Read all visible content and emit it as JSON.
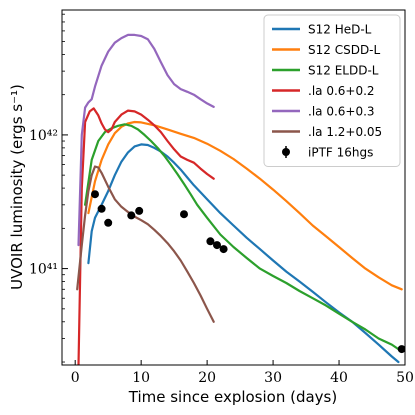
{
  "chart_data": {
    "type": "line",
    "xlabel": "Time since explosion (days)",
    "ylabel": "UVOIR luminosity (ergs s⁻¹)",
    "xlim": [
      -2,
      50
    ],
    "ylim": [
      1.9e+40,
      8.6e+42
    ],
    "yscale": "log",
    "grid": false,
    "legend_position": "top-right",
    "x_ticks": [
      0,
      10,
      20,
      30,
      40,
      50
    ],
    "y_ticks": [
      {
        "value": 1e+41,
        "label": "10⁴¹"
      },
      {
        "value": 1e+42,
        "label": "10⁴²"
      }
    ],
    "series": [
      {
        "name": "S12 HeD-L",
        "color": "#1f77b4",
        "points": [
          [
            2.0,
            1.1e+41
          ],
          [
            2.5,
            1.9e+41
          ],
          [
            3.0,
            2.4e+41
          ],
          [
            4.0,
            3e+41
          ],
          [
            5.0,
            3.8e+41
          ],
          [
            6.0,
            5e+41
          ],
          [
            7.0,
            6.3e+41
          ],
          [
            8.0,
            7.4e+41
          ],
          [
            9.0,
            8.2e+41
          ],
          [
            10.0,
            8.5e+41
          ],
          [
            11.0,
            8.4e+41
          ],
          [
            12.0,
            8e+41
          ],
          [
            13.0,
            7.5e+41
          ],
          [
            14.0,
            6.9e+41
          ],
          [
            15.0,
            6.2e+41
          ],
          [
            16.0,
            5.5e+41
          ],
          [
            17.0,
            4.8e+41
          ],
          [
            18.0,
            4.2e+41
          ],
          [
            20.0,
            3.3e+41
          ],
          [
            22.0,
            2.6e+41
          ],
          [
            24.0,
            2.1e+41
          ],
          [
            26.0,
            1.7e+41
          ],
          [
            28.0,
            1.4e+41
          ],
          [
            30.0,
            1.15e+41
          ],
          [
            32.0,
            9.5e+40
          ],
          [
            34.0,
            8e+40
          ],
          [
            36.0,
            6.7e+40
          ],
          [
            38.0,
            5.6e+40
          ],
          [
            40.0,
            4.7e+40
          ],
          [
            42.0,
            4e+40
          ],
          [
            44.0,
            3.3e+40
          ],
          [
            46.0,
            2.7e+40
          ],
          [
            48.0,
            2.2e+40
          ],
          [
            49.0,
            2e+40
          ]
        ]
      },
      {
        "name": "S12 CSDD-L",
        "color": "#ff7f0e",
        "points": [
          [
            2.0,
            2.6e+41
          ],
          [
            3.0,
            4.5e+41
          ],
          [
            4.0,
            6.5e+41
          ],
          [
            5.0,
            8.5e+41
          ],
          [
            6.0,
            1.03e+42
          ],
          [
            7.0,
            1.15e+42
          ],
          [
            8.0,
            1.22e+42
          ],
          [
            9.0,
            1.25e+42
          ],
          [
            10.0,
            1.24e+42
          ],
          [
            12.0,
            1.18e+42
          ],
          [
            14.0,
            1.1e+42
          ],
          [
            16.0,
            1.02e+42
          ],
          [
            18.0,
            9.5e+41
          ],
          [
            20.0,
            8.6e+41
          ],
          [
            22.0,
            7.6e+41
          ],
          [
            24.0,
            6.6e+41
          ],
          [
            26.0,
            5.6e+41
          ],
          [
            28.0,
            4.7e+41
          ],
          [
            30.0,
            3.9e+41
          ],
          [
            32.0,
            3.2e+41
          ],
          [
            34.0,
            2.6e+41
          ],
          [
            36.0,
            2.1e+41
          ],
          [
            38.0,
            1.75e+41
          ],
          [
            40.0,
            1.45e+41
          ],
          [
            42.0,
            1.2e+41
          ],
          [
            44.0,
            1e+41
          ],
          [
            46.0,
            8.6e+40
          ],
          [
            48.0,
            7.5e+40
          ],
          [
            49.5,
            7e+40
          ]
        ]
      },
      {
        "name": "S12 ELDD-L",
        "color": "#2ca02c",
        "points": [
          [
            1.5,
            3e+41
          ],
          [
            2.5,
            6.5e+41
          ],
          [
            3.5,
            9e+41
          ],
          [
            4.5,
            1.05e+42
          ],
          [
            5.5,
            1.12e+42
          ],
          [
            6.5,
            1.17e+42
          ],
          [
            7.5,
            1.2e+42
          ],
          [
            8.5,
            1.17e+42
          ],
          [
            9.5,
            1.1e+42
          ],
          [
            10.5,
            1e+42
          ],
          [
            11.5,
            9e+41
          ],
          [
            12.5,
            8e+41
          ],
          [
            13.5,
            7e+41
          ],
          [
            14.5,
            6e+41
          ],
          [
            15.5,
            5.1e+41
          ],
          [
            16.5,
            4.3e+41
          ],
          [
            17.5,
            3.6e+41
          ],
          [
            18.5,
            3e+41
          ],
          [
            20.0,
            2.4e+41
          ],
          [
            22.0,
            1.8e+41
          ],
          [
            24.0,
            1.45e+41
          ],
          [
            26.0,
            1.2e+41
          ],
          [
            28.0,
            1e+41
          ],
          [
            30.0,
            8.8e+40
          ],
          [
            32.0,
            7.8e+40
          ],
          [
            34.0,
            6.8e+40
          ],
          [
            36.0,
            6e+40
          ],
          [
            38.0,
            5.3e+40
          ],
          [
            40.0,
            4.6e+40
          ],
          [
            42.0,
            4e+40
          ],
          [
            44.0,
            3.5e+40
          ],
          [
            46.0,
            3e+40
          ],
          [
            48.0,
            2.7e+40
          ],
          [
            49.5,
            2.4e+40
          ]
        ]
      },
      {
        "name": ".la 0.6+0.2",
        "color": "#d62728",
        "points": [
          [
            0.5,
            1.9e+40
          ],
          [
            1.0,
            4e+41
          ],
          [
            1.5,
            1.25e+42
          ],
          [
            2.2,
            1.5e+42
          ],
          [
            2.8,
            1.58e+42
          ],
          [
            3.5,
            1.4e+42
          ],
          [
            4.0,
            1.22e+42
          ],
          [
            4.5,
            1.1e+42
          ],
          [
            5.0,
            1.05e+42
          ],
          [
            5.5,
            1.1e+42
          ],
          [
            6.0,
            1.25e+42
          ],
          [
            7.0,
            1.42e+42
          ],
          [
            8.0,
            1.52e+42
          ],
          [
            9.0,
            1.5e+42
          ],
          [
            10.0,
            1.42e+42
          ],
          [
            11.0,
            1.3e+42
          ],
          [
            12.0,
            1.18e+42
          ],
          [
            13.0,
            1.05e+42
          ],
          [
            14.0,
            9e+41
          ],
          [
            15.0,
            7.8e+41
          ],
          [
            16.0,
            6.9e+41
          ],
          [
            17.0,
            6.5e+41
          ],
          [
            18.0,
            6.2e+41
          ],
          [
            19.0,
            5.6e+41
          ],
          [
            20.0,
            5.1e+41
          ],
          [
            21.0,
            4.7e+41
          ]
        ]
      },
      {
        "name": ".la 0.6+0.3",
        "color": "#9467bd",
        "points": [
          [
            0.5,
            1.5e+41
          ],
          [
            1.0,
            1e+42
          ],
          [
            1.5,
            1.6e+42
          ],
          [
            2.0,
            1.75e+42
          ],
          [
            2.5,
            1.85e+42
          ],
          [
            3.0,
            2.3e+42
          ],
          [
            4.0,
            3.3e+42
          ],
          [
            5.0,
            4.2e+42
          ],
          [
            6.0,
            4.9e+42
          ],
          [
            7.0,
            5.3e+42
          ],
          [
            8.0,
            5.6e+42
          ],
          [
            9.0,
            5.6e+42
          ],
          [
            10.0,
            5.5e+42
          ],
          [
            11.0,
            5.2e+42
          ],
          [
            12.0,
            4.4e+42
          ],
          [
            13.0,
            3.5e+42
          ],
          [
            14.0,
            2.8e+42
          ],
          [
            15.0,
            2.4e+42
          ],
          [
            16.0,
            2.2e+42
          ],
          [
            17.0,
            2.1e+42
          ],
          [
            18.0,
            2e+42
          ],
          [
            19.0,
            1.85e+42
          ],
          [
            20.0,
            1.72e+42
          ],
          [
            21.0,
            1.62e+42
          ]
        ]
      },
      {
        "name": ".la 1.2+0.05",
        "color": "#8c564b",
        "points": [
          [
            0.3,
            7e+40
          ],
          [
            1.0,
            1.5e+41
          ],
          [
            1.5,
            2.5e+41
          ],
          [
            2.0,
            3.8e+41
          ],
          [
            2.5,
            5e+41
          ],
          [
            3.0,
            5.8e+41
          ],
          [
            3.5,
            5.7e+41
          ],
          [
            4.0,
            5.2e+41
          ],
          [
            5.0,
            4.1e+41
          ],
          [
            6.0,
            3.3e+41
          ],
          [
            7.0,
            2.9e+41
          ],
          [
            8.0,
            2.65e+41
          ],
          [
            9.0,
            2.45e+41
          ],
          [
            10.0,
            2.3e+41
          ],
          [
            11.0,
            2.15e+41
          ],
          [
            12.0,
            1.95e+41
          ],
          [
            13.0,
            1.75e+41
          ],
          [
            14.0,
            1.55e+41
          ],
          [
            15.0,
            1.35e+41
          ],
          [
            16.0,
            1.15e+41
          ],
          [
            17.0,
            9.5e+40
          ],
          [
            18.0,
            7.8e+40
          ],
          [
            19.0,
            6.3e+40
          ],
          [
            20.0,
            5e+40
          ],
          [
            21.0,
            4e+40
          ]
        ]
      },
      {
        "name": "iPTF 16hgs",
        "color": "#000000",
        "style": "points",
        "points": [
          [
            3.0,
            3.6e+41
          ],
          [
            4.0,
            2.8e+41
          ],
          [
            5.0,
            2.2e+41
          ],
          [
            8.5,
            2.5e+41
          ],
          [
            9.7,
            2.7e+41
          ],
          [
            16.5,
            2.55e+41
          ],
          [
            20.5,
            1.6e+41
          ],
          [
            21.5,
            1.5e+41
          ],
          [
            22.5,
            1.4e+41
          ],
          [
            49.5,
            2.5e+40
          ]
        ]
      }
    ]
  }
}
